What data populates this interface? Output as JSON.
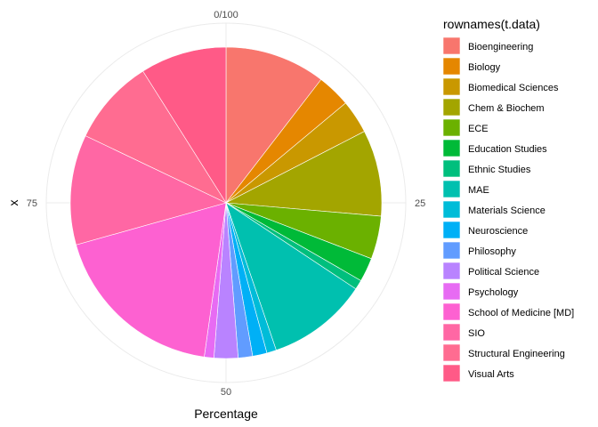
{
  "chart_data": {
    "type": "pie",
    "xlabel": "Percentage",
    "ylabel": "x",
    "theta_ticks": [
      {
        "value": 0,
        "label": "0/100"
      },
      {
        "value": 25,
        "label": "25"
      },
      {
        "value": 50,
        "label": "50"
      },
      {
        "value": 75,
        "label": "75"
      }
    ],
    "theta_range": [
      0,
      100
    ],
    "grid": true,
    "legend": {
      "title": "rownames(t.data)",
      "position": "right"
    },
    "slices": [
      {
        "label": "Bioengineering",
        "value": 10.5,
        "color": "#F8766D"
      },
      {
        "label": "Biology",
        "value": 3.5,
        "color": "#E58700"
      },
      {
        "label": "Biomedical Sciences",
        "value": 3.5,
        "color": "#C99800"
      },
      {
        "label": "Chem & Biochem",
        "value": 9.0,
        "color": "#A3A500"
      },
      {
        "label": "ECE",
        "value": 4.5,
        "color": "#6BB100"
      },
      {
        "label": "Education Studies",
        "value": 2.5,
        "color": "#00BA38"
      },
      {
        "label": "Ethnic Studies",
        "value": 1.0,
        "color": "#00BF7D"
      },
      {
        "label": "MAE",
        "value": 10.5,
        "color": "#00C0AF"
      },
      {
        "label": "Materials Science",
        "value": 1.0,
        "color": "#00BCD8"
      },
      {
        "label": "Neuroscience",
        "value": 1.5,
        "color": "#00B0F6"
      },
      {
        "label": "Philosophy",
        "value": 1.5,
        "color": "#619CFF"
      },
      {
        "label": "Political Science",
        "value": 2.5,
        "color": "#B983FF"
      },
      {
        "label": "Psychology",
        "value": 1.0,
        "color": "#E76BF3"
      },
      {
        "label": "School of Medicine [MD]",
        "value": 18.5,
        "color": "#FD61D1"
      },
      {
        "label": "SIO",
        "value": 11.5,
        "color": "#FF67A4"
      },
      {
        "label": "Structural Engineering",
        "value": 9.0,
        "color": "#FF6C91"
      },
      {
        "label": "Visual Arts",
        "value": 9.0,
        "color": "#FF5A87"
      }
    ]
  }
}
